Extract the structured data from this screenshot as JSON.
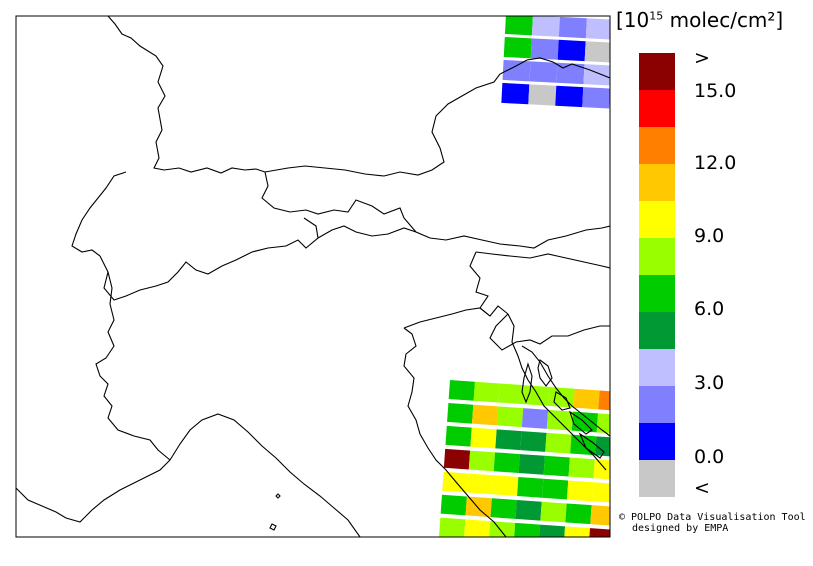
{
  "legend": {
    "title_base": "[10",
    "title_exp": "15",
    "title_unit": " molec/cm²]",
    "ticks": [
      ">",
      "15.0",
      "12.0",
      "9.0",
      "6.0",
      "3.0",
      "0.0",
      "<"
    ],
    "colors": [
      "#8b0000",
      "#ff0000",
      "#ff8000",
      "#ffc800",
      "#ffff00",
      "#99ff00",
      "#00cc00",
      "#009933",
      "#bfbfff",
      "#8080ff",
      "#0000ff",
      "#c8c8c8"
    ]
  },
  "credit": {
    "line1": "© POLPO Data Visualisation Tool",
    "line2": "designed by EMPA"
  },
  "swaths": {
    "north": [
      [
        "#00cc00",
        "#bfbfff",
        "#8080ff",
        "#bfbfff"
      ],
      [
        "#00cc00",
        "#8080ff",
        "#0000ff",
        "#c8c8c8"
      ],
      [
        "#8080ff",
        "#8080ff",
        "#8080ff",
        "#bfbfff"
      ],
      [
        "#0000ff",
        "#c8c8c8",
        "#0000ff",
        "#8080ff"
      ]
    ],
    "south": [
      [
        "#00cc00",
        "#99ff00",
        "#99ff00",
        "#99ff00",
        "#99ff00",
        "#ffc800",
        "#ff8000"
      ],
      [
        "#00cc00",
        "#ffc800",
        "#99ff00",
        "#8080ff",
        "#99ff00",
        "#00cc00",
        "#99ff00"
      ],
      [
        "#00cc00",
        "#ffff00",
        "#009933",
        "#009933",
        "#99ff00",
        "#00cc00",
        "#009933"
      ],
      [
        "#8b0000",
        "#99ff00",
        "#00cc00",
        "#009933",
        "#00cc00",
        "#99ff00",
        "#ffff00"
      ],
      [
        "#ffff00",
        "#ffff00",
        "#ffff00",
        "#00cc00",
        "#00cc00",
        "#ffff00",
        "#ffff00"
      ],
      [
        "#00cc00",
        "#ffc800",
        "#00cc00",
        "#009933",
        "#99ff00",
        "#00cc00",
        "#ffc800"
      ],
      [
        "#99ff00",
        "#ffff00",
        "#99ff00",
        "#00cc00",
        "#009933",
        "#ffff00",
        "#8b0000"
      ],
      [
        "#8080ff",
        "#99ff00",
        "#8b0000",
        "#00cc00",
        "#99ff00",
        "#99ff00",
        "#00cc00"
      ]
    ]
  }
}
